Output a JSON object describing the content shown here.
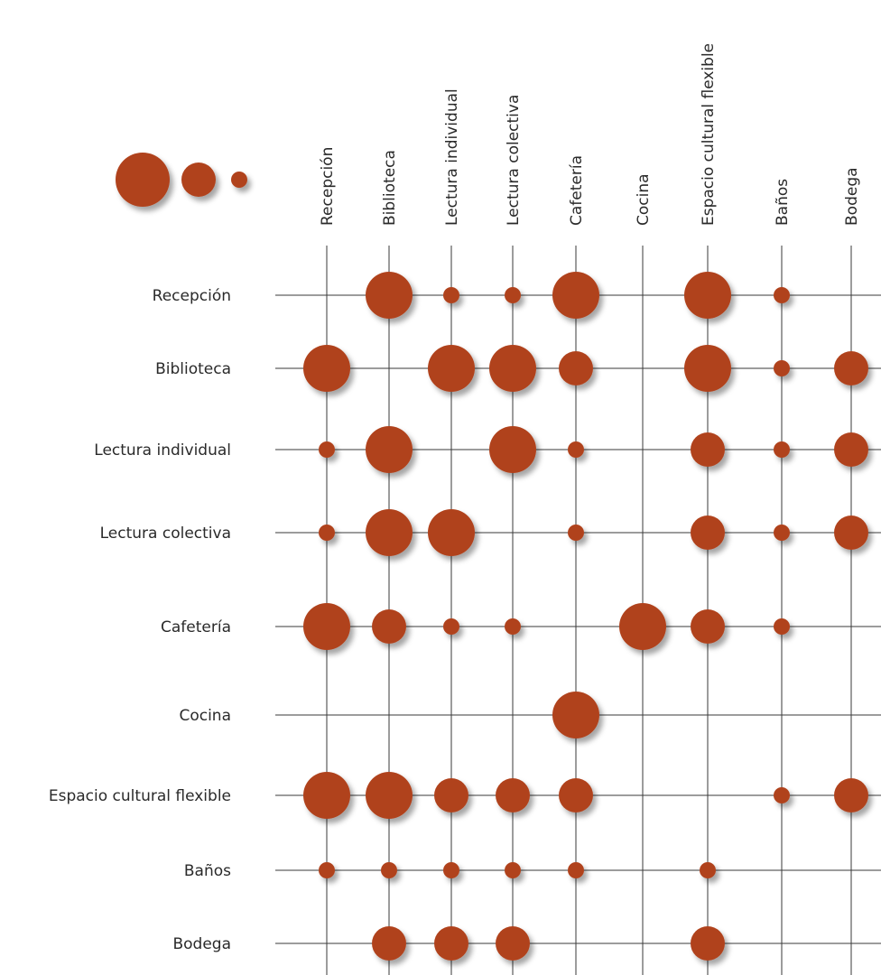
{
  "chart_data": {
    "type": "scatter",
    "title": "",
    "legend": {
      "placement": "top-left",
      "sizes": [
        "large",
        "medium",
        "small"
      ]
    },
    "columns": [
      "Recepción",
      "Biblioteca",
      "Lectura individual",
      "Lectura colectiva",
      "Cafetería",
      "Cocina",
      "Espacio cultural flexible",
      "Baños",
      "Bodega"
    ],
    "rows": [
      "Recepción",
      "Biblioteca",
      "Lectura individual",
      "Lectura colectiva",
      "Cafetería",
      "Cocina",
      "Espacio cultural flexible",
      "Baños",
      "Bodega"
    ],
    "value_scale": "0 = sin relación, 1 = pequeño, 2 = mediano, 3 = grande",
    "values": [
      [
        0,
        3,
        1,
        1,
        3,
        0,
        3,
        1,
        0
      ],
      [
        3,
        0,
        3,
        3,
        2,
        0,
        3,
        1,
        2
      ],
      [
        1,
        3,
        0,
        3,
        1,
        0,
        2,
        1,
        2
      ],
      [
        1,
        3,
        3,
        0,
        1,
        0,
        2,
        1,
        2
      ],
      [
        3,
        2,
        1,
        1,
        0,
        3,
        2,
        1,
        0
      ],
      [
        0,
        0,
        0,
        0,
        3,
        0,
        0,
        0,
        0
      ],
      [
        3,
        3,
        2,
        2,
        2,
        0,
        0,
        1,
        2
      ],
      [
        1,
        1,
        1,
        1,
        1,
        0,
        1,
        0,
        0
      ],
      [
        0,
        2,
        2,
        2,
        0,
        0,
        2,
        0,
        0
      ]
    ],
    "dot_color": "#B0431E",
    "line_color": "#3a3a3a"
  }
}
